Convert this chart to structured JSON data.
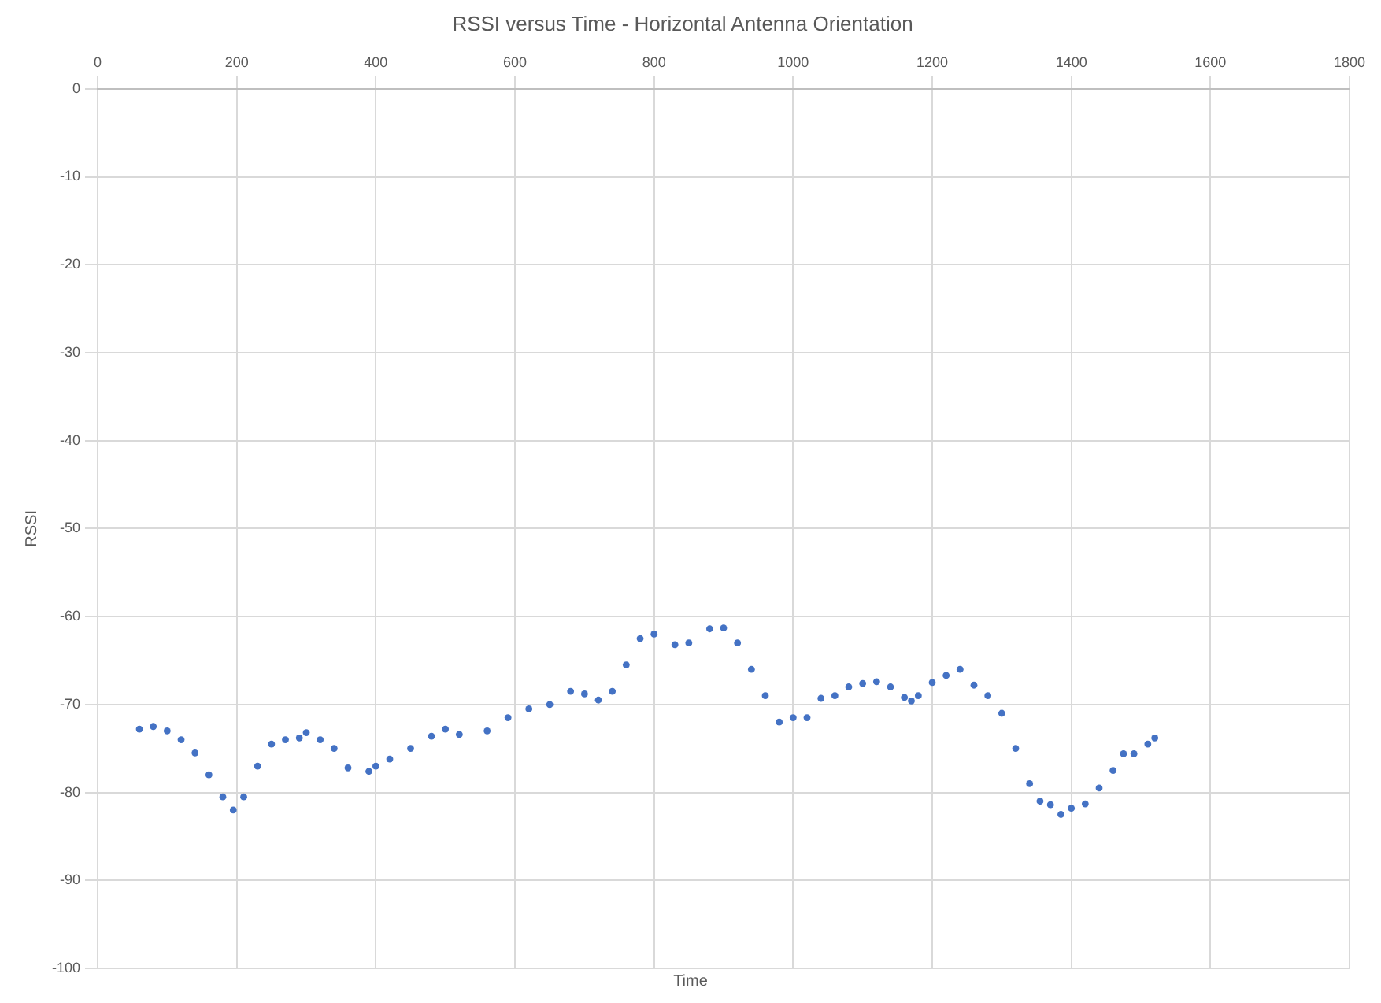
{
  "chart_data": {
    "type": "scatter",
    "title": "RSSI versus Time - Horizontal Antenna Orientation",
    "xlabel": "Time",
    "ylabel": "RSSI",
    "xlim": [
      0,
      1800
    ],
    "xticks": [
      0,
      200,
      400,
      600,
      800,
      1000,
      1200,
      1400,
      1600,
      1800
    ],
    "ylim": [
      -100,
      0
    ],
    "yticks": [
      -100,
      -90,
      -80,
      -70,
      -60,
      -50,
      -40,
      -30,
      -20,
      -10,
      0
    ],
    "grid": true,
    "legend": false,
    "marker": "circle",
    "series": [
      {
        "color": "#4472c4",
        "x": [
          60,
          80,
          100,
          120,
          140,
          160,
          180,
          195,
          210,
          230,
          250,
          270,
          290,
          300,
          320,
          340,
          360,
          390,
          400,
          420,
          450,
          480,
          500,
          520,
          560,
          590,
          620,
          650,
          680,
          700,
          720,
          740,
          760,
          780,
          800,
          830,
          850,
          880,
          900,
          920,
          940,
          960,
          980,
          1000,
          1020,
          1040,
          1060,
          1080,
          1100,
          1120,
          1140,
          1160,
          1170,
          1180,
          1200,
          1220,
          1240,
          1260,
          1280,
          1300,
          1320,
          1340,
          1355,
          1370,
          1385,
          1400,
          1420,
          1440,
          1460,
          1475,
          1490,
          1510,
          1520
        ],
        "values": [
          -72.8,
          -72.5,
          -73,
          -74,
          -75.5,
          -78,
          -80.5,
          -82,
          -80.5,
          -77,
          -74.5,
          -74,
          -73.8,
          -73.2,
          -74,
          -75,
          -77.2,
          -77.6,
          -77,
          -76.2,
          -75,
          -73.6,
          -72.8,
          -73.4,
          -73,
          -71.5,
          -70.5,
          -70,
          -68.5,
          -68.8,
          -69.5,
          -68.5,
          -65.5,
          -62.5,
          -62,
          -63.2,
          -63,
          -61.4,
          -61.3,
          -63,
          -66,
          -69,
          -72,
          -71.5,
          -71.5,
          -69.3,
          -69,
          -68,
          -67.6,
          -67.4,
          -68,
          -69.2,
          -69.6,
          -69,
          -67.5,
          -66.7,
          -66,
          -67.8,
          -69,
          -71,
          -75,
          -79,
          -81,
          -81.4,
          -82.5,
          -81.8,
          -81.3,
          -79.5,
          -77.5,
          -75.6,
          -75.6,
          -74.5,
          -73.8
        ]
      }
    ]
  }
}
